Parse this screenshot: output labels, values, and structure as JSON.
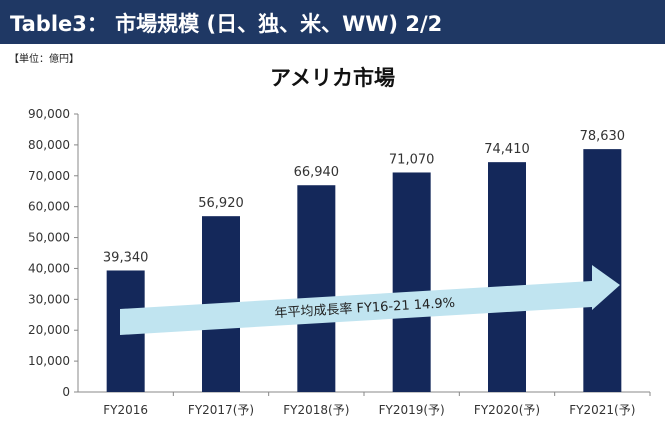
{
  "header": {
    "title": "Table3： 市場規模 (日、独、米、WW) 2/2"
  },
  "unit_label": "【単位：億円】",
  "chart_data": {
    "type": "bar",
    "title": "アメリカ市場",
    "categories": [
      "FY2016",
      "FY2017(予)",
      "FY2018(予)",
      "FY2019(予)",
      "FY2020(予)",
      "FY2021(予)"
    ],
    "values": [
      39340,
      56920,
      66940,
      71070,
      74410,
      78630
    ],
    "data_labels": [
      "39,340",
      "56,920",
      "66,940",
      "71,070",
      "74,410",
      "78,630"
    ],
    "ylim": [
      0,
      90000
    ],
    "y_ticks": [
      0,
      10000,
      20000,
      30000,
      40000,
      50000,
      60000,
      70000,
      80000,
      90000
    ],
    "y_tick_labels": [
      "0",
      "10,000",
      "20,000",
      "30,000",
      "40,000",
      "50,000",
      "60,000",
      "70,000",
      "80,000",
      "90,000"
    ],
    "bar_color": "#14285a",
    "grid": false,
    "annotation": {
      "text": "年平均成長率  FY16-21 14.9%",
      "arrow_color": "#c0e4f0"
    }
  }
}
